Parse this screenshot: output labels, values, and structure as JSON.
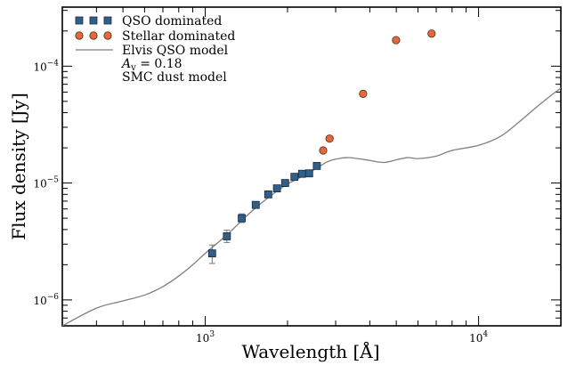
{
  "chart_data": {
    "type": "scatter",
    "xlabel": "Wavelength  [Å]",
    "ylabel": "Flux density  [Jy]",
    "xscale": "log",
    "yscale": "log",
    "xlim": [
      300,
      20000
    ],
    "ylim": [
      6e-07,
      0.00032
    ],
    "x_tick_labels": [
      {
        "value": 1000,
        "base": "10",
        "exp": "3"
      },
      {
        "value": 10000,
        "base": "10",
        "exp": "4"
      }
    ],
    "y_tick_labels": [
      {
        "value": 1e-06,
        "base": "10",
        "exp": "−6"
      },
      {
        "value": 1e-05,
        "base": "10",
        "exp": "−5"
      },
      {
        "value": 0.0001,
        "base": "10",
        "exp": "−4"
      }
    ],
    "legend_position": "top-left",
    "series": [
      {
        "name": "QSO dominated",
        "marker": "square",
        "color": "#2f5f8a",
        "points": [
          {
            "x": 1060,
            "y": 2.5e-06,
            "err": [
              2.05e-06,
              2.95e-06
            ]
          },
          {
            "x": 1200,
            "y": 3.5e-06,
            "err": [
              3.1e-06,
              3.95e-06
            ]
          },
          {
            "x": 1360,
            "y": 5e-06,
            "err": [
              4.6e-06,
              5.45e-06
            ]
          },
          {
            "x": 1530,
            "y": 6.5e-06
          },
          {
            "x": 1700,
            "y": 8e-06
          },
          {
            "x": 1830,
            "y": 9e-06
          },
          {
            "x": 1960,
            "y": 1e-05
          },
          {
            "x": 2120,
            "y": 1.13e-05
          },
          {
            "x": 2260,
            "y": 1.2e-05
          },
          {
            "x": 2400,
            "y": 1.21e-05
          },
          {
            "x": 2560,
            "y": 1.4e-05
          }
        ]
      },
      {
        "name": "Stellar dominated",
        "marker": "circle",
        "color": "#e06a3d",
        "points": [
          {
            "x": 2700,
            "y": 1.9e-05
          },
          {
            "x": 2850,
            "y": 2.4e-05
          },
          {
            "x": 3780,
            "y": 5.8e-05
          },
          {
            "x": 4990,
            "y": 0.000167
          },
          {
            "x": 6730,
            "y": 0.00019
          }
        ]
      },
      {
        "name": "Elvis QSO model",
        "marker": "line",
        "color": "#7f7f7f",
        "points": [
          {
            "x": 300,
            "y": 6e-07
          },
          {
            "x": 400,
            "y": 8.5e-07
          },
          {
            "x": 500,
            "y": 9.8e-07
          },
          {
            "x": 600,
            "y": 1.1e-06
          },
          {
            "x": 700,
            "y": 1.3e-06
          },
          {
            "x": 800,
            "y": 1.6e-06
          },
          {
            "x": 900,
            "y": 2e-06
          },
          {
            "x": 1000,
            "y": 2.5e-06
          },
          {
            "x": 1200,
            "y": 3.6e-06
          },
          {
            "x": 1400,
            "y": 5.1e-06
          },
          {
            "x": 1600,
            "y": 6.7e-06
          },
          {
            "x": 1800,
            "y": 8.3e-06
          },
          {
            "x": 2000,
            "y": 9.8e-06
          },
          {
            "x": 2200,
            "y": 1.1e-05
          },
          {
            "x": 2500,
            "y": 1.3e-05
          },
          {
            "x": 2800,
            "y": 1.52e-05
          },
          {
            "x": 3000,
            "y": 1.6e-05
          },
          {
            "x": 3300,
            "y": 1.65e-05
          },
          {
            "x": 3600,
            "y": 1.62e-05
          },
          {
            "x": 4000,
            "y": 1.56e-05
          },
          {
            "x": 4500,
            "y": 1.5e-05
          },
          {
            "x": 5000,
            "y": 1.58e-05
          },
          {
            "x": 5500,
            "y": 1.65e-05
          },
          {
            "x": 6000,
            "y": 1.62e-05
          },
          {
            "x": 7000,
            "y": 1.7e-05
          },
          {
            "x": 8000,
            "y": 1.9e-05
          },
          {
            "x": 10000,
            "y": 2.1e-05
          },
          {
            "x": 12000,
            "y": 2.5e-05
          },
          {
            "x": 14000,
            "y": 3.3e-05
          },
          {
            "x": 16000,
            "y": 4.3e-05
          },
          {
            "x": 18000,
            "y": 5.4e-05
          },
          {
            "x": 20000,
            "y": 6.5e-05
          }
        ]
      }
    ],
    "legend_notes": [
      {
        "name": "av",
        "italic": "A",
        "sub": "v",
        "rest": "  =  0.18"
      },
      {
        "name": "smc",
        "text": "SMC dust model"
      }
    ]
  }
}
